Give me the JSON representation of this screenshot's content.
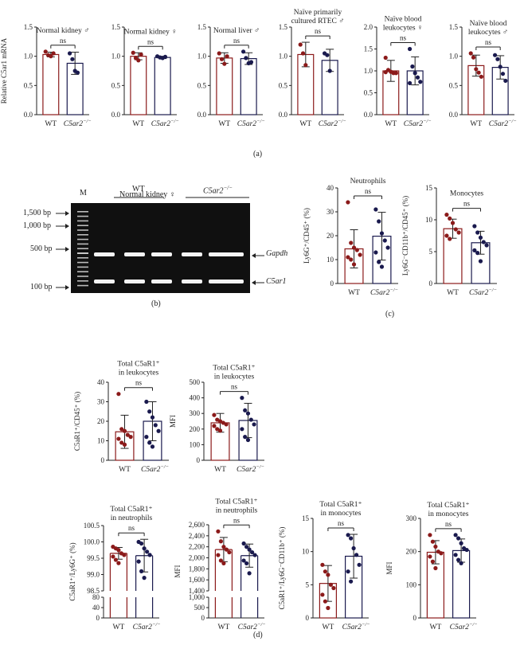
{
  "colors": {
    "wt": "#8b1a1a",
    "ko": "#1a1a4e",
    "axis": "#222222",
    "gel_bg": "#101010",
    "gel_band": "#f4f4f4"
  },
  "group_labels": {
    "wt": "WT",
    "ko_base": "C5ar2",
    "ko_sup": "−/−"
  },
  "sig_label": "ns",
  "panel_letters": {
    "a": "(a)",
    "b": "(b)",
    "c": "(c)",
    "d": "(d)"
  },
  "gel": {
    "title": "Normal kidney ♀",
    "marker_lane": "M",
    "group_wt": "WT",
    "group_ko": "C5ar2",
    "group_ko_sup": "−/−",
    "ladder": [
      "1,500 bp",
      "1,000 bp",
      "500 bp",
      "100 bp"
    ],
    "bands": [
      "Gapdh",
      "C5ar1"
    ]
  },
  "chart_data": [
    {
      "id": "a1",
      "type": "bar",
      "title": [
        "Normal kidney ♂"
      ],
      "ylabel": "Relative C5ar1 mRNA",
      "ylim": [
        0,
        1.5
      ],
      "yticks": [
        "0.0",
        "0.5",
        "1.0",
        "1.5"
      ],
      "categories": [
        "WT",
        "C5ar2−/−"
      ],
      "values": [
        1.03,
        0.88
      ],
      "sd": [
        0.04,
        0.19
      ],
      "points": [
        [
          1.08,
          1.02,
          1.0,
          1.05
        ],
        [
          1.05,
          0.95,
          0.75,
          0.72
        ]
      ],
      "annotation": "ns"
    },
    {
      "id": "a2",
      "type": "bar",
      "title": [
        "Normal kidney ♀"
      ],
      "ylabel": "",
      "ylim": [
        0,
        1.5
      ],
      "yticks": [
        "0.0",
        "0.5",
        "1.0",
        "1.5"
      ],
      "categories": [
        "WT",
        "C5ar2−/−"
      ],
      "values": [
        1.0,
        0.98
      ],
      "sd": [
        0.06,
        0.02
      ],
      "points": [
        [
          1.06,
          0.97,
          0.93,
          1.03
        ],
        [
          1.0,
          0.98,
          0.97,
          0.99
        ]
      ],
      "annotation": "ns"
    },
    {
      "id": "a3",
      "type": "bar",
      "title": [
        "Normal liver ♂"
      ],
      "ylabel": "",
      "ylim": [
        0,
        1.5
      ],
      "yticks": [
        "0.0",
        "0.5",
        "1.0",
        "1.5"
      ],
      "categories": [
        "WT",
        "C5ar2−/−"
      ],
      "values": [
        0.97,
        0.96
      ],
      "sd": [
        0.09,
        0.1
      ],
      "points": [
        [
          1.05,
          0.95,
          0.87,
          1.0
        ],
        [
          1.08,
          0.97,
          0.88,
          0.9
        ]
      ],
      "annotation": "ns"
    },
    {
      "id": "a4",
      "type": "bar",
      "title": [
        "Naïve primarily",
        "cultured RTEC ♂"
      ],
      "ylabel": "",
      "ylim": [
        0,
        1.5
      ],
      "yticks": [
        "0.0",
        "0.5",
        "1.0",
        "1.5"
      ],
      "categories": [
        "WT",
        "C5ar2−/−"
      ],
      "values": [
        1.03,
        0.93
      ],
      "sd": [
        0.21,
        0.19
      ],
      "points": [
        [
          1.2,
          1.05,
          0.85
        ],
        [
          1.05,
          1.02,
          0.75
        ]
      ],
      "annotation": "ns"
    },
    {
      "id": "a5",
      "type": "bar",
      "title": [
        "Naïve blood",
        "leukocytes ♀"
      ],
      "ylabel": "",
      "ylim": [
        0,
        2.0
      ],
      "yticks": [
        "0.0",
        "0.5",
        "1.0",
        "1.5",
        "2.0"
      ],
      "categories": [
        "WT",
        "C5ar2−/−"
      ],
      "values": [
        1.0,
        1.0
      ],
      "sd": [
        0.24,
        0.32
      ],
      "points": [
        [
          1.3,
          1.02,
          0.98,
          0.95,
          0.95,
          0.97
        ],
        [
          1.5,
          1.1,
          0.95,
          0.85,
          0.75,
          0.72
        ]
      ],
      "annotation": "ns"
    },
    {
      "id": "a6",
      "type": "bar",
      "title": [
        "Naïve blood",
        "leukocytes ♂"
      ],
      "ylabel": "",
      "ylim": [
        0,
        1.5
      ],
      "yticks": [
        "0.0",
        "0.5",
        "1.0",
        "1.5"
      ],
      "categories": [
        "WT",
        "C5ar2−/−"
      ],
      "values": [
        0.84,
        0.81
      ],
      "sd": [
        0.18,
        0.2
      ],
      "points": [
        [
          1.05,
          0.98,
          0.78,
          0.72,
          0.65
        ],
        [
          1.02,
          0.95,
          0.82,
          0.7,
          0.58
        ]
      ],
      "annotation": "ns"
    },
    {
      "id": "c1",
      "type": "bar",
      "title": [
        "Neutrophils"
      ],
      "ylabel": "Ly6G⁺/CD45⁺ (%)",
      "ylim": [
        0,
        40
      ],
      "yticks": [
        "0",
        "10",
        "20",
        "30",
        "40"
      ],
      "categories": [
        "WT",
        "C5ar2−/−"
      ],
      "values": [
        14.5,
        19.8
      ],
      "sd": [
        8,
        10
      ],
      "points": [
        [
          34,
          17,
          15,
          14,
          12,
          11,
          10,
          8
        ],
        [
          31,
          26,
          21,
          18,
          15,
          13,
          9,
          7
        ]
      ],
      "annotation": "ns"
    },
    {
      "id": "c2",
      "type": "bar",
      "title": [
        "Monocytes"
      ],
      "ylabel": "Ly6G⁻CD11b⁺/CD45⁺ (%)",
      "ylim": [
        0,
        15
      ],
      "yticks": [
        "0",
        "5",
        "10",
        "15"
      ],
      "categories": [
        "WT",
        "C5ar2−/−"
      ],
      "values": [
        8.6,
        6.4
      ],
      "sd": [
        1.5,
        1.8
      ],
      "points": [
        [
          10.8,
          10.2,
          9.5,
          8.5,
          8.0,
          7.5,
          7.0
        ],
        [
          9.0,
          8.0,
          7.2,
          6.5,
          6.0,
          5.2,
          4.8,
          3.5
        ]
      ],
      "annotation": "ns"
    },
    {
      "id": "d1",
      "type": "bar",
      "title": [
        "Total C5aR1⁺",
        "in leukocytes"
      ],
      "ylabel": "C5aR1⁺/CD45⁺ (%)",
      "ylim": [
        0,
        40
      ],
      "yticks": [
        "0",
        "10",
        "20",
        "30",
        "40"
      ],
      "categories": [
        "WT",
        "C5ar2−/−"
      ],
      "values": [
        14.6,
        20.0
      ],
      "sd": [
        8.5,
        10
      ],
      "points": [
        [
          34,
          16,
          15,
          13,
          12,
          11,
          9,
          8
        ],
        [
          30,
          25,
          22,
          18,
          15,
          12,
          9,
          7
        ]
      ],
      "annotation": "ns"
    },
    {
      "id": "d2",
      "type": "bar",
      "title": [
        "Total C5aR1⁺",
        "in leukocytes"
      ],
      "ylabel": "MFI",
      "ylim": [
        0,
        500
      ],
      "yticks": [
        "0",
        "100",
        "200",
        "300",
        "400",
        "500"
      ],
      "categories": [
        "WT",
        "C5ar2−/−"
      ],
      "values": [
        240,
        255
      ],
      "sd": [
        60,
        110
      ],
      "points": [
        [
          290,
          260,
          250,
          240,
          230,
          220,
          200,
          190
        ],
        [
          400,
          320,
          300,
          260,
          230,
          200,
          150,
          130
        ]
      ],
      "annotation": "ns"
    },
    {
      "id": "d3",
      "type": "bar",
      "title": [
        "Total C5aR1⁺",
        "in neutrophils"
      ],
      "ylabel": "C5aR1⁺/Ly6G⁺ (%)",
      "broken": true,
      "ylim_top": [
        98.5,
        100.5
      ],
      "ylim_bottom": [
        0,
        100
      ],
      "yticks_top": [
        "98.5",
        "99.0",
        "99.5",
        "100.0",
        "100.5"
      ],
      "yticks_bottom": [
        "0",
        "40",
        "80"
      ],
      "categories": [
        "WT",
        "C5ar2−/−"
      ],
      "values": [
        99.65,
        99.58
      ],
      "sd": [
        0.18,
        0.5
      ],
      "points": [
        [
          99.85,
          99.8,
          99.75,
          99.65,
          99.6,
          99.55,
          99.45,
          99.35
        ],
        [
          100.0,
          99.95,
          99.8,
          99.7,
          99.6,
          99.4,
          99.1,
          98.9
        ]
      ],
      "annotation": "ns"
    },
    {
      "id": "d4",
      "type": "bar",
      "title": [
        "Total C5aR1⁺",
        "in neutrophils"
      ],
      "ylabel": "MFI",
      "broken": true,
      "ylim_top": [
        1400,
        2600
      ],
      "ylim_bottom": [
        0,
        1000
      ],
      "yticks_top": [
        "1,400",
        "1,600",
        "1,800",
        "2,000",
        "2,200",
        "2,400",
        "2,600"
      ],
      "yticks_bottom": [
        "0",
        "500",
        "1,000"
      ],
      "categories": [
        "WT",
        "C5ar2−/−"
      ],
      "values": [
        2150,
        2040
      ],
      "sd": [
        220,
        210
      ],
      "points": [
        [
          2480,
          2300,
          2200,
          2150,
          2100,
          2050,
          1950,
          1900
        ],
        [
          2260,
          2200,
          2150,
          2100,
          2050,
          1950,
          1900,
          1720
        ]
      ],
      "annotation": "ns"
    },
    {
      "id": "d5",
      "type": "bar",
      "title": [
        "Total C5aR1⁺",
        "in monocytes"
      ],
      "ylabel": "C5aR1⁺/Ly6G⁻CD11b⁺ (%)",
      "ylim": [
        0,
        15
      ],
      "yticks": [
        "0",
        "5",
        "10",
        "15"
      ],
      "categories": [
        "WT",
        "C5ar2−/−"
      ],
      "values": [
        5.2,
        9.3
      ],
      "sd": [
        2.7,
        3.3
      ],
      "points": [
        [
          8.0,
          7.0,
          6.5,
          5.0,
          4.5,
          3.5,
          2.5,
          1.5
        ],
        [
          12.5,
          12.0,
          10.5,
          9.5,
          8.0,
          7.0,
          5.5
        ]
      ],
      "annotation": "ns"
    },
    {
      "id": "d6",
      "type": "bar",
      "title": [
        "Total C5aR1⁺",
        "in monocytes"
      ],
      "ylabel": "MFI",
      "ylim": [
        0,
        300
      ],
      "yticks": [
        "0",
        "100",
        "200",
        "300"
      ],
      "categories": [
        "WT",
        "C5ar2−/−"
      ],
      "values": [
        198,
        203
      ],
      "sd": [
        35,
        35
      ],
      "points": [
        [
          250,
          230,
          215,
          200,
          195,
          185,
          170,
          150
        ],
        [
          250,
          240,
          225,
          210,
          205,
          190,
          175,
          165
        ]
      ],
      "annotation": "ns"
    }
  ]
}
